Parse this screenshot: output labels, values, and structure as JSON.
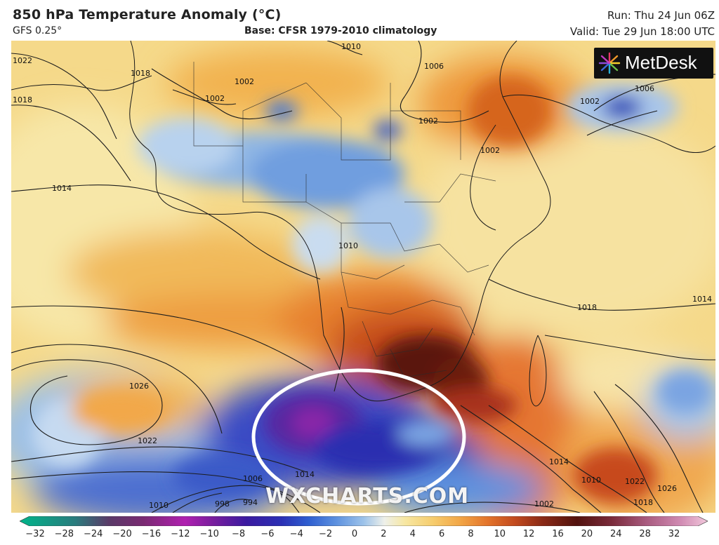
{
  "header": {
    "title": "850 hPa Temperature Anomaly (°C)",
    "model": "GFS 0.25°",
    "base": "Base: CFSR 1979-2010 climatology",
    "run": "Run: Thu 24 Jun 06Z",
    "valid": "Valid: Tue 29 Jun 18:00 UTC"
  },
  "logo": {
    "text": "MetDesk",
    "icon": "metdesk-starburst-icon"
  },
  "watermark": "WXCHARTS.COM",
  "isobar_labels": [
    {
      "id": "iso-1022-nw",
      "text": "1022"
    },
    {
      "id": "iso-1018-nw",
      "text": "1018"
    },
    {
      "id": "iso-1010-n",
      "text": "1010"
    },
    {
      "id": "iso-1006-n",
      "text": "1006"
    },
    {
      "id": "iso-1002-sahara",
      "text": "1002"
    },
    {
      "id": "iso-1002-sahara-b",
      "text": "1002"
    },
    {
      "id": "iso-1018-sahel",
      "text": "1018"
    },
    {
      "id": "iso-1002-sudan",
      "text": "1002"
    },
    {
      "id": "iso-1002-arabia",
      "text": "1002"
    },
    {
      "id": "iso-1006-asia",
      "text": "1006"
    },
    {
      "id": "iso-1002-asia",
      "text": "1002"
    },
    {
      "id": "iso-1014-atl",
      "text": "1014"
    },
    {
      "id": "iso-1010-congo",
      "text": "1010"
    },
    {
      "id": "iso-1018-indian",
      "text": "1018"
    },
    {
      "id": "iso-1014-indian",
      "text": "1014"
    },
    {
      "id": "iso-1026-satl",
      "text": "1026"
    },
    {
      "id": "iso-1022-satl",
      "text": "1022"
    },
    {
      "id": "iso-1014-south",
      "text": "1014"
    },
    {
      "id": "iso-1006-south",
      "text": "1006"
    },
    {
      "id": "iso-1010-sw",
      "text": "1010"
    },
    {
      "id": "iso-998-sw",
      "text": "998"
    },
    {
      "id": "iso-994-sw",
      "text": "994"
    },
    {
      "id": "iso-1002-se",
      "text": "1002"
    },
    {
      "id": "iso-1014-se",
      "text": "1014"
    },
    {
      "id": "iso-1010-se",
      "text": "1010"
    },
    {
      "id": "iso-1022-se",
      "text": "1022"
    },
    {
      "id": "iso-1018-se",
      "text": "1018"
    },
    {
      "id": "iso-1026-se",
      "text": "1026"
    }
  ],
  "colorbar": {
    "ticks": [
      "−32",
      "−28",
      "−24",
      "−20",
      "−16",
      "−12",
      "−10",
      "−8",
      "−6",
      "−4",
      "−2",
      "0",
      "2",
      "4",
      "6",
      "8",
      "10",
      "12",
      "16",
      "20",
      "24",
      "28",
      "32"
    ],
    "colors": [
      "#00b48a",
      "#2a7d7e",
      "#5a3a68",
      "#7a2a72",
      "#b020b0",
      "#7a1e9e",
      "#3a1aa0",
      "#2b2fb4",
      "#2f5fd0",
      "#5d91df",
      "#9dc3ea",
      "#eef0ea",
      "#f7e7a2",
      "#f6cd6e",
      "#f2a646",
      "#e3742b",
      "#c24a1e",
      "#8a2a16",
      "#52120e",
      "#7a2a3a",
      "#a85a7e",
      "#d08ab2",
      "#f2c8dc"
    ]
  },
  "annotation": {
    "shape": "white-ellipse",
    "marks": "cold anomaly south of South Africa"
  }
}
